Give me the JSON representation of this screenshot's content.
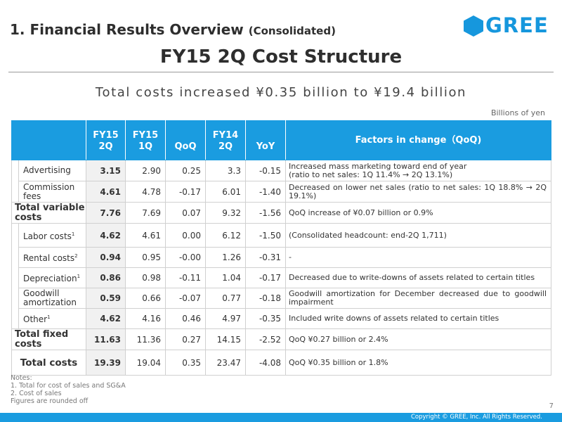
{
  "header": {
    "section_title": "1. Financial Results Overview",
    "section_sub": "(Consolidated)",
    "logo_text": "GREE"
  },
  "title": "FY15 2Q Cost Structure",
  "subtitle": "Total costs increased ¥0.35 billion to ¥19.4 billion",
  "unit": "Billions of yen",
  "table": {
    "headers": {
      "fy15_2q": "FY15\n2Q",
      "fy15_1q": "FY15\n1Q",
      "qoq": "QoQ",
      "fy14_2q": "FY14\n2Q",
      "yoy": "YoY",
      "factors": "Factors in change（QoQ)"
    },
    "rows": {
      "advertising": {
        "label": "Advertising",
        "fy15_2q": "3.15",
        "fy15_1q": "2.90",
        "qoq": "0.25",
        "fy14_2q": "3.3",
        "yoy": "-0.15",
        "factor": "Increased mass marketing toward end of year\n(ratio to net sales: 1Q 11.4% → 2Q 13.1%)"
      },
      "commission": {
        "label": "Commission fees",
        "fy15_2q": "4.61",
        "fy15_1q": "4.78",
        "qoq": "-0.17",
        "fy14_2q": "6.01",
        "yoy": "-1.40",
        "factor": "Decreased on lower net sales (ratio to net sales: 1Q 18.8% → 2Q 19.1%)"
      },
      "total_variable": {
        "label": "Total variable costs",
        "fy15_2q": "7.76",
        "fy15_1q": "7.69",
        "qoq": "0.07",
        "fy14_2q": "9.32",
        "yoy": "-1.56",
        "factor": "QoQ increase of ¥0.07 billion or 0.9%"
      },
      "labor": {
        "label": "Labor costs",
        "note": "1",
        "fy15_2q": "4.62",
        "fy15_1q": "4.61",
        "qoq": "0.00",
        "fy14_2q": "6.12",
        "yoy": "-1.50",
        "factor": "(Consolidated headcount: end-2Q 1,711)"
      },
      "rental": {
        "label": "Rental costs",
        "note": "2",
        "fy15_2q": "0.94",
        "fy15_1q": "0.95",
        "qoq": "-0.00",
        "fy14_2q": "1.26",
        "yoy": "-0.31",
        "factor": "-"
      },
      "depreciation": {
        "label": "Depreciation",
        "note": "1",
        "fy15_2q": "0.86",
        "fy15_1q": "0.98",
        "qoq": "-0.11",
        "fy14_2q": "1.04",
        "yoy": "-0.17",
        "factor": "Decreased due to write-downs of assets related to certain titles"
      },
      "goodwill": {
        "label": "Goodwill amortization",
        "fy15_2q": "0.59",
        "fy15_1q": "0.66",
        "qoq": "-0.07",
        "fy14_2q": "0.77",
        "yoy": "-0.18",
        "factor": "Goodwill amortization for December decreased due to goodwill impairment"
      },
      "other": {
        "label": "Other",
        "note": "1",
        "fy15_2q": "4.62",
        "fy15_1q": "4.16",
        "qoq": "0.46",
        "fy14_2q": "4.97",
        "yoy": "-0.35",
        "factor": "Included write downs of assets related to certain titles"
      },
      "total_fixed": {
        "label": "Total fixed costs",
        "fy15_2q": "11.63",
        "fy15_1q": "11.36",
        "qoq": "0.27",
        "fy14_2q": "14.15",
        "yoy": "-2.52",
        "factor": "QoQ ¥0.27 billion or 2.4%"
      },
      "total_costs": {
        "label": "Total costs",
        "fy15_2q": "19.39",
        "fy15_1q": "19.04",
        "qoq": "0.35",
        "fy14_2q": "23.47",
        "yoy": "-4.08",
        "factor": "QoQ ¥0.35 billion or 1.8%"
      }
    }
  },
  "notes": {
    "heading": "Notes:",
    "note1": "1. Total for cost of sales and SG&A",
    "note2": "2. Cost of sales",
    "note3": "Figures are rounded off"
  },
  "page_number": "7",
  "copyright": "Copyright © GREE, Inc. All Rights Reserved.",
  "colors": {
    "accent": "#1a9ce0",
    "logo": "#1697dd",
    "highlight_column": "#f1f1f1"
  }
}
